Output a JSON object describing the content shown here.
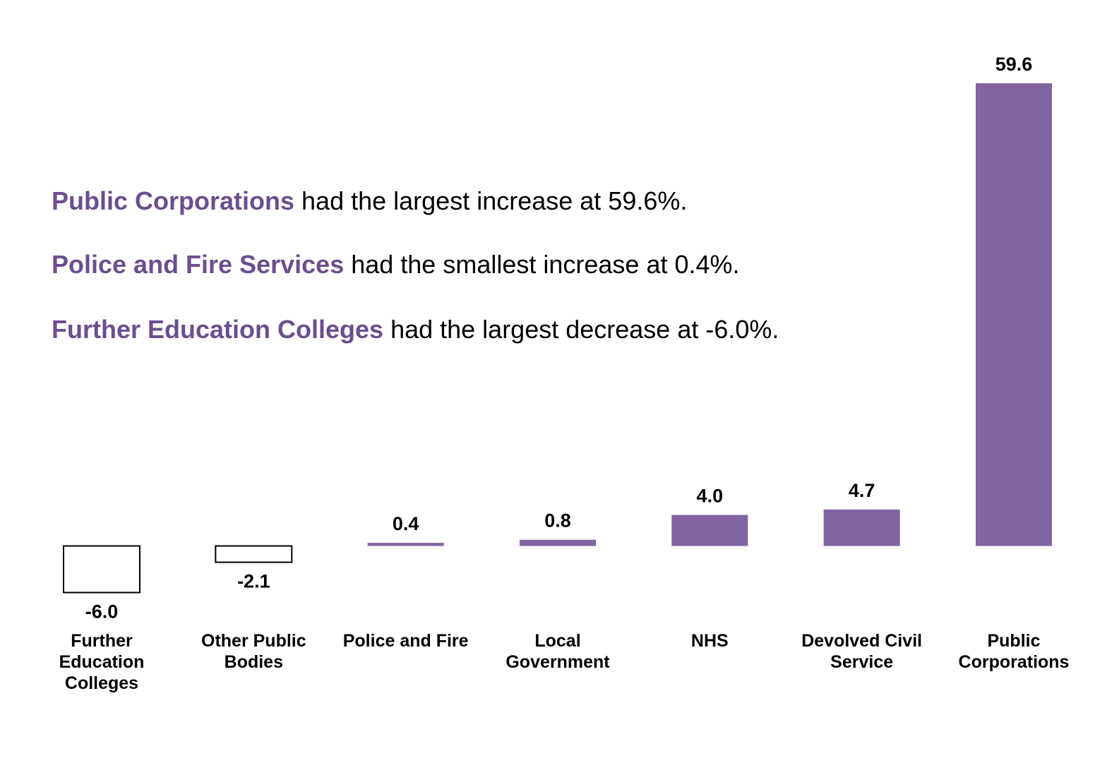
{
  "annotations": [
    {
      "highlight": "Public Corporations",
      "rest": " had the largest increase at 59.6%."
    },
    {
      "highlight": "Police and Fire Services",
      "rest": " had the smallest increase at 0.4%."
    },
    {
      "highlight": "Further Education Colleges",
      "rest": " had the largest decrease at -6.0%."
    }
  ],
  "colors": {
    "highlight_text": "#6a4f8f",
    "positive_bar": "#8065a0",
    "negative_bar_fill": "#ffffff",
    "negative_bar_stroke": "#000000"
  },
  "chart_data": {
    "type": "bar",
    "title": "",
    "xlabel": "",
    "ylabel": "",
    "grid": false,
    "categories": [
      [
        "Further",
        "Education",
        "Colleges"
      ],
      [
        "Other Public",
        "Bodies"
      ],
      [
        "Police and Fire"
      ],
      [
        "Local",
        "Government"
      ],
      [
        "NHS"
      ],
      [
        "Devolved Civil",
        "Service"
      ],
      [
        "Public",
        "Corporations"
      ]
    ],
    "values": [
      -6.0,
      -2.1,
      0.4,
      0.8,
      4.0,
      4.7,
      59.6
    ],
    "value_labels": [
      "-6.0",
      "-2.1",
      "0.4",
      "0.8",
      "4.0",
      "4.7",
      "59.6"
    ],
    "ylim": [
      -6.0,
      59.6
    ]
  }
}
